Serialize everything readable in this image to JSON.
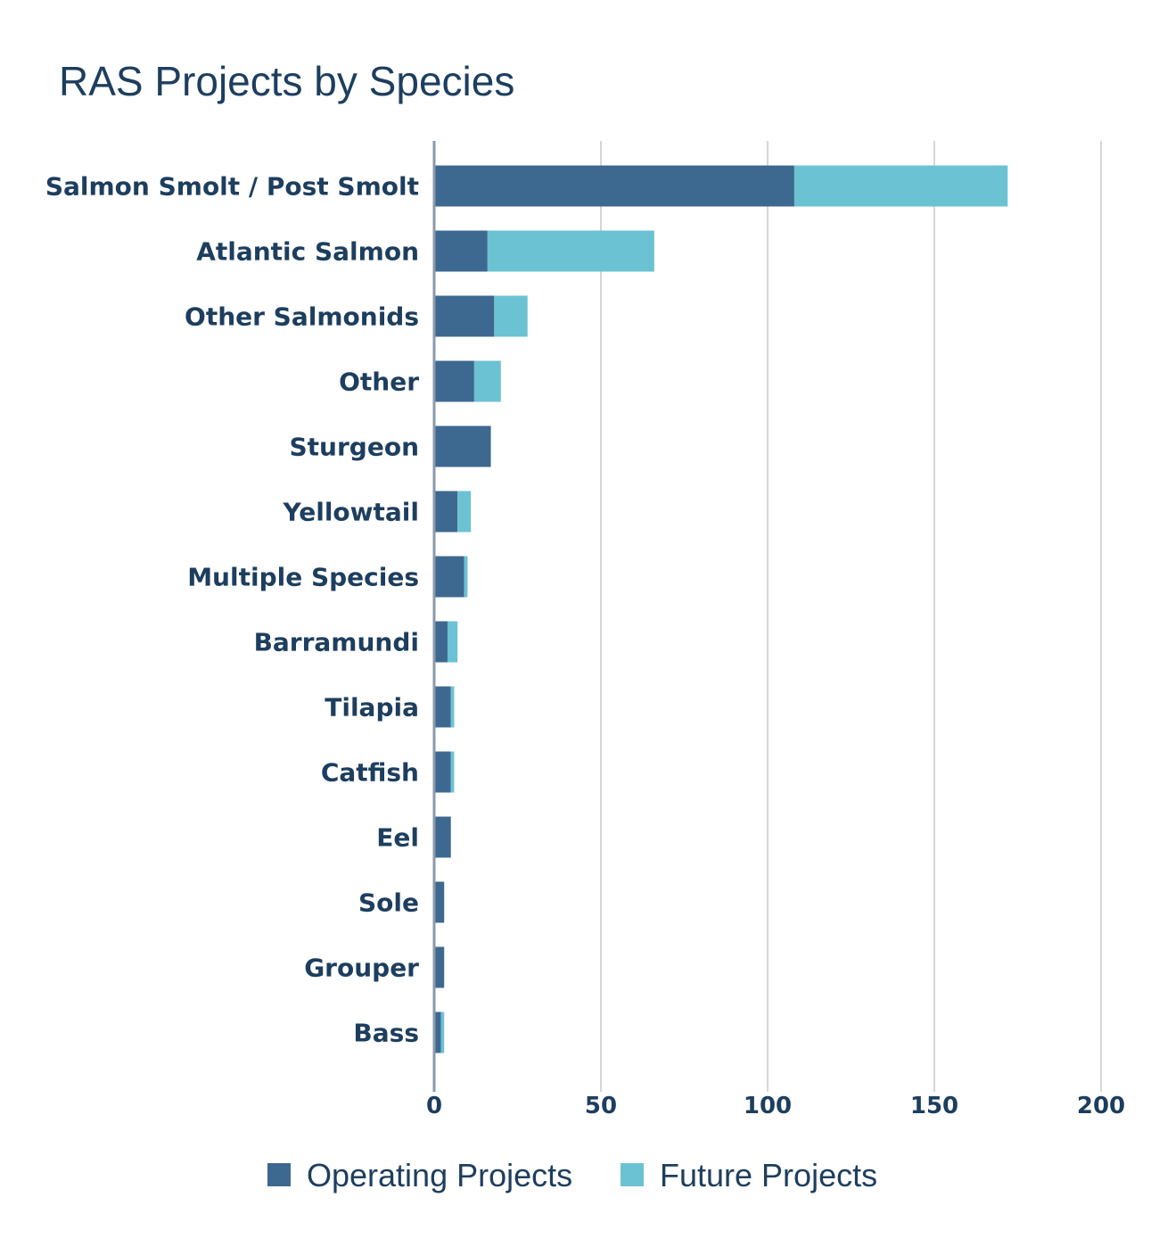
{
  "chart_data": {
    "type": "bar",
    "orientation": "horizontal",
    "stacked": true,
    "title": "RAS Projects by Species",
    "xlabel": "",
    "ylabel": "",
    "xlim": [
      0,
      200
    ],
    "xticks": [
      0,
      50,
      100,
      150,
      200
    ],
    "grid": true,
    "legend_position": "bottom",
    "categories": [
      "Salmon Smolt / Post Smolt",
      "Atlantic Salmon",
      "Other Salmonids",
      "Other",
      "Sturgeon",
      "Yellowtail",
      "Multiple Species",
      "Barramundi",
      "Tilapia",
      "Catfish",
      "Eel",
      "Sole",
      "Grouper",
      "Bass"
    ],
    "series": [
      {
        "name": "Operating Projects",
        "color": "#3d6890",
        "values": [
          108,
          16,
          18,
          12,
          17,
          7,
          9,
          4,
          5,
          5,
          5,
          3,
          3,
          2
        ]
      },
      {
        "name": "Future Projects",
        "color": "#6bc2d2",
        "values": [
          64,
          50,
          10,
          8,
          0,
          4,
          1,
          3,
          1,
          1,
          0,
          0,
          0,
          1
        ]
      }
    ]
  }
}
